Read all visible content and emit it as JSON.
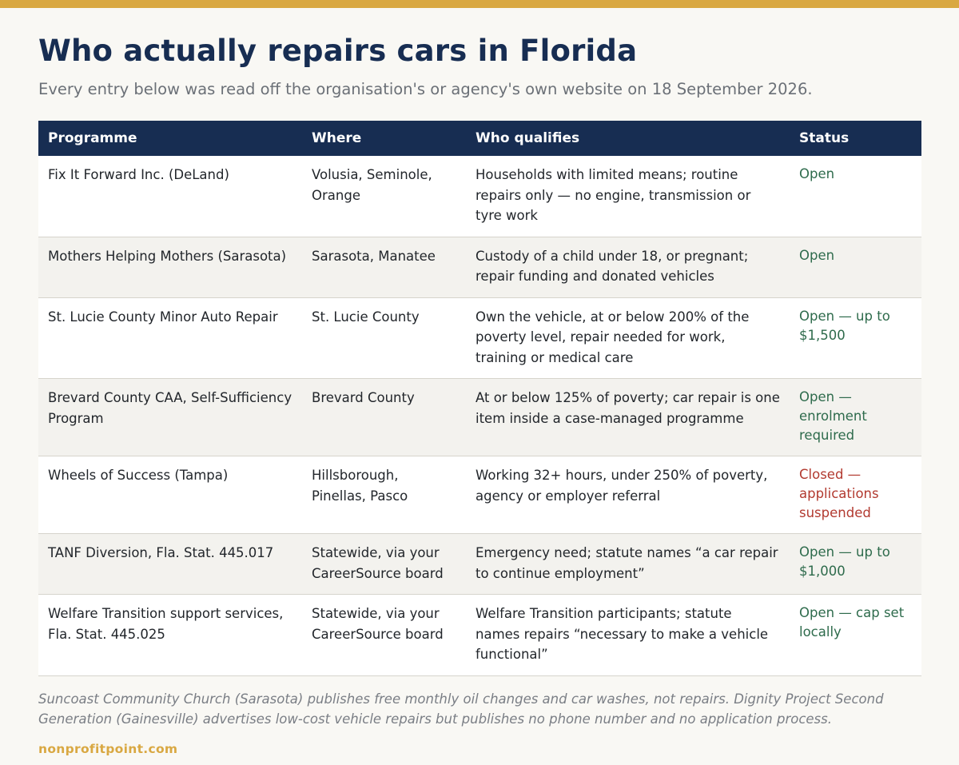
{
  "title": "Who actually repairs cars in Florida",
  "subtitle": "Every entry below was read off the organisation's or agency's own website on 18 September 2026.",
  "table": {
    "headers": [
      "Programme",
      "Where",
      "Who qualifies",
      "Status"
    ],
    "rows": [
      {
        "programme": "Fix It Forward Inc. (DeLand)",
        "where": "Volusia, Seminole, Orange",
        "who": "Households with limited means; routine repairs only — no engine, transmission or tyre work",
        "status": "Open",
        "status_kind": "open"
      },
      {
        "programme": "Mothers Helping Mothers (Sarasota)",
        "where": "Sarasota, Manatee",
        "who": "Custody of a child under 18, or pregnant; repair funding and donated vehicles",
        "status": "Open",
        "status_kind": "open"
      },
      {
        "programme": "St. Lucie County Minor Auto Repair",
        "where": "St. Lucie County",
        "who": "Own the vehicle, at or below 200% of the poverty level, repair needed for work, training or medical care",
        "status": "Open — up to $1,500",
        "status_kind": "open"
      },
      {
        "programme": "Brevard County CAA, Self-Sufficiency Program",
        "where": "Brevard County",
        "who": "At or below 125% of poverty; car repair is one item inside a case-managed programme",
        "status": "Open — enrolment required",
        "status_kind": "open"
      },
      {
        "programme": "Wheels of Success (Tampa)",
        "where": "Hillsborough, Pinellas, Pasco",
        "who": "Working 32+ hours, under 250% of poverty, agency or employer referral",
        "status": "Closed — applications suspended",
        "status_kind": "closed"
      },
      {
        "programme": "TANF Diversion, Fla. Stat. 445.017",
        "where": "Statewide, via your CareerSource board",
        "who": "Emergency need; statute names “a car repair to continue employment”",
        "status": "Open — up to $1,000",
        "status_kind": "open"
      },
      {
        "programme": "Welfare Transition support services, Fla. Stat. 445.025",
        "where": "Statewide, via your CareerSource board",
        "who": "Welfare Transition participants; statute names repairs “necessary to make a vehicle functional”",
        "status": "Open — cap set locally",
        "status_kind": "open"
      }
    ]
  },
  "footnote": "Suncoast Community Church (Sarasota) publishes free monthly oil changes and car washes, not repairs. Dignity Project Second Generation (Gainesville) advertises low-cost vehicle repairs but publishes no phone number and no application process.",
  "source": "nonprofitpoint.com",
  "colors": {
    "accent": "#d9a842",
    "header_bg": "#172d52",
    "status_open": "#2e6b4c",
    "status_closed": "#b23a30"
  }
}
